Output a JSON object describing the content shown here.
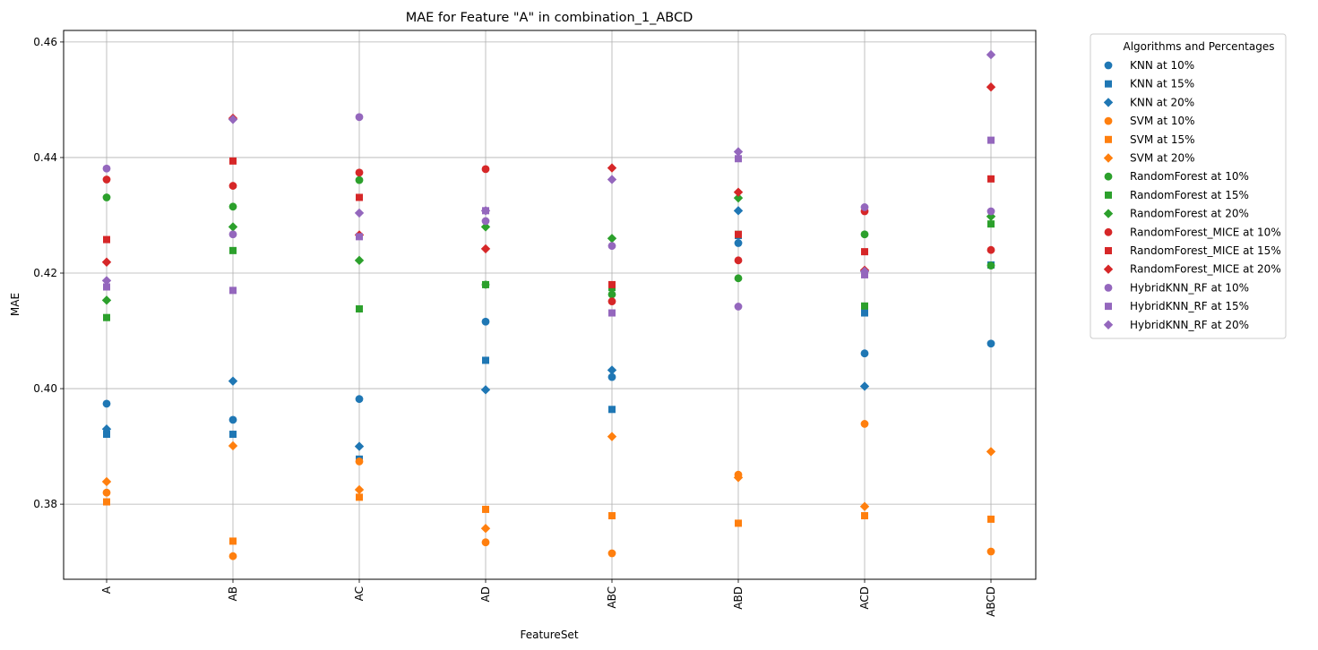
{
  "chart_data": {
    "type": "scatter",
    "title": "MAE for Feature \"A\" in combination_1_ABCD",
    "xlabel": "FeatureSet",
    "ylabel": "MAE",
    "categories": [
      "A",
      "AB",
      "AC",
      "AD",
      "ABC",
      "ABD",
      "ACD",
      "ABCD"
    ],
    "ylim": [
      0.367,
      0.462
    ],
    "yticks": [
      0.38,
      0.4,
      0.42,
      0.44,
      0.46
    ],
    "ytick_labels": [
      "0.38",
      "0.40",
      "0.42",
      "0.44",
      "0.46"
    ],
    "grid": true,
    "legend": {
      "title": "Algorithms and Percentages",
      "placement": "outside-right"
    },
    "colors": {
      "KNN": "#1f77b4",
      "SVM": "#ff7f0e",
      "RandomForest": "#2ca02c",
      "RandomForest_MICE": "#d62728",
      "HybridKNN_RF": "#9467bd"
    },
    "series": [
      {
        "name": "KNN at 10%",
        "algorithm": "KNN",
        "marker": "circle",
        "values": [
          0.3974,
          0.3946,
          0.3982,
          0.4116,
          0.402,
          0.4252,
          0.4061,
          0.4078
        ]
      },
      {
        "name": "KNN at 15%",
        "algorithm": "KNN",
        "marker": "square",
        "values": [
          0.3921,
          0.3921,
          0.3878,
          0.4049,
          0.3964,
          0.4265,
          0.4131,
          0.4214
        ]
      },
      {
        "name": "KNN at 20%",
        "algorithm": "KNN",
        "marker": "diamond",
        "values": [
          0.393,
          0.4013,
          0.39,
          0.3998,
          0.4032,
          0.4308,
          0.4004,
          null
        ]
      },
      {
        "name": "SVM at 10%",
        "algorithm": "SVM",
        "marker": "circle",
        "values": [
          0.382,
          0.371,
          0.3874,
          0.3734,
          0.3715,
          0.3851,
          0.3939,
          0.3718
        ]
      },
      {
        "name": "SVM at 15%",
        "algorithm": "SVM",
        "marker": "square",
        "values": [
          0.3804,
          0.3736,
          0.3812,
          0.3791,
          0.378,
          0.3767,
          0.378,
          0.3774
        ]
      },
      {
        "name": "SVM at 20%",
        "algorithm": "SVM",
        "marker": "diamond",
        "values": [
          0.3839,
          0.3901,
          0.3825,
          0.3758,
          0.3917,
          0.3846,
          0.3796,
          0.3891
        ]
      },
      {
        "name": "RandomForest at 10%",
        "algorithm": "RandomForest",
        "marker": "circle",
        "values": [
          0.4331,
          0.4315,
          0.4361,
          0.418,
          0.4163,
          0.4191,
          0.4267,
          0.4213
        ]
      },
      {
        "name": "RandomForest at 15%",
        "algorithm": "RandomForest",
        "marker": "square",
        "values": [
          0.4123,
          0.4239,
          0.4138,
          0.418,
          0.4175,
          0.4267,
          0.4143,
          0.4285
        ]
      },
      {
        "name": "RandomForest at 20%",
        "algorithm": "RandomForest",
        "marker": "diamond",
        "values": [
          0.4153,
          0.428,
          0.4222,
          0.428,
          0.426,
          0.433,
          0.4203,
          0.4298
        ]
      },
      {
        "name": "RandomForest_MICE at 10%",
        "algorithm": "RandomForest_MICE",
        "marker": "circle",
        "values": [
          0.4362,
          0.4351,
          0.4374,
          0.438,
          0.4151,
          0.4222,
          0.4307,
          0.424
        ]
      },
      {
        "name": "RandomForest_MICE at 15%",
        "algorithm": "RandomForest_MICE",
        "marker": "square",
        "values": [
          0.4258,
          0.4394,
          0.4331,
          null,
          0.418,
          0.4267,
          0.4237,
          0.4363
        ]
      },
      {
        "name": "RandomForest_MICE at 20%",
        "algorithm": "RandomForest_MICE",
        "marker": "diamond",
        "values": [
          0.4219,
          0.4468,
          0.4266,
          0.4242,
          0.4382,
          0.434,
          0.4205,
          0.4522
        ]
      },
      {
        "name": "HybridKNN_RF at 10%",
        "algorithm": "HybridKNN_RF",
        "marker": "circle",
        "values": [
          0.4381,
          0.4267,
          0.447,
          0.429,
          0.4247,
          0.4142,
          0.4314,
          0.4307
        ]
      },
      {
        "name": "HybridKNN_RF at 15%",
        "algorithm": "HybridKNN_RF",
        "marker": "square",
        "values": [
          0.4176,
          0.417,
          0.4263,
          0.4308,
          0.4131,
          0.4398,
          0.4197,
          0.443
        ]
      },
      {
        "name": "HybridKNN_RF at 20%",
        "algorithm": "HybridKNN_RF",
        "marker": "diamond",
        "values": [
          0.4187,
          0.4466,
          0.4304,
          0.4308,
          0.4362,
          0.441,
          0.4203,
          0.4578
        ]
      }
    ]
  }
}
